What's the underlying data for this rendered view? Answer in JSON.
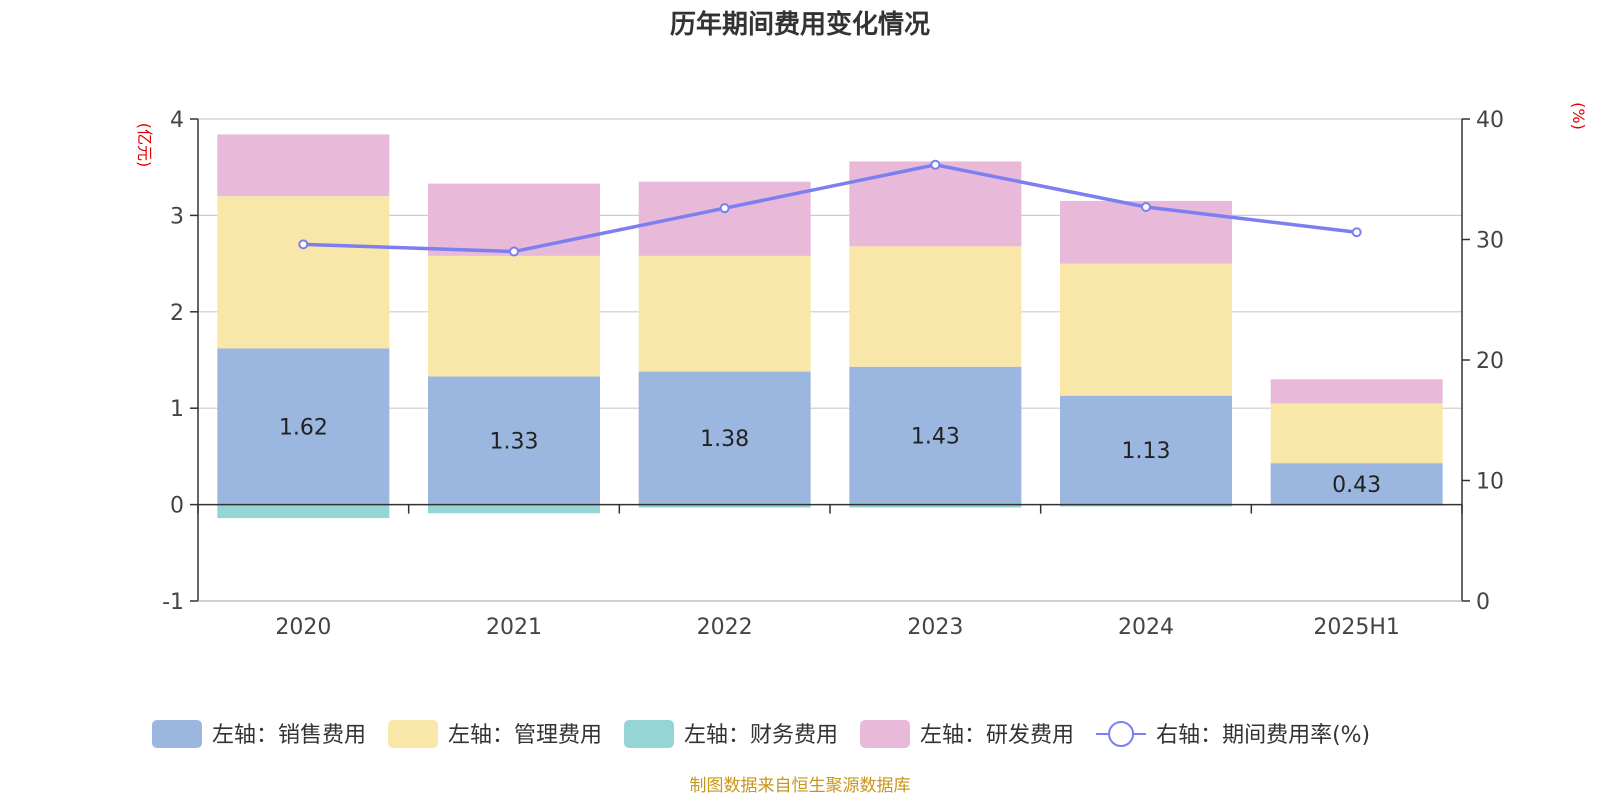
{
  "chart_data": {
    "type": "bar",
    "title": "历年期间费用变化情况",
    "categories": [
      "2020",
      "2021",
      "2022",
      "2023",
      "2024",
      "2025H1"
    ],
    "left_axis": {
      "unit": "(亿元)",
      "ylim": [
        -1,
        4
      ],
      "ticks": [
        -1,
        0,
        1,
        2,
        3,
        4
      ]
    },
    "right_axis": {
      "unit": "(%)",
      "ylim": [
        0,
        40
      ],
      "ticks": [
        0,
        10,
        20,
        30,
        40
      ]
    },
    "grid": true,
    "legend_position": "bottom",
    "series": [
      {
        "name": "左轴：销售费用",
        "type": "bar",
        "stack": "total",
        "color": "#9bb7e0",
        "values": [
          1.62,
          1.33,
          1.38,
          1.43,
          1.13,
          0.43
        ],
        "show_labels": true
      },
      {
        "name": "左轴：管理费用",
        "type": "bar",
        "stack": "total",
        "color": "#f8e7a8",
        "values": [
          1.58,
          1.25,
          1.2,
          1.25,
          1.37,
          0.62
        ]
      },
      {
        "name": "左轴：财务费用",
        "type": "bar",
        "stack": "total",
        "color": "#96d5d5",
        "values": [
          -0.14,
          -0.09,
          -0.03,
          -0.03,
          -0.02,
          -0.01
        ]
      },
      {
        "name": "左轴：研发费用",
        "type": "bar",
        "stack": "total",
        "color": "#e8b9d9",
        "values": [
          0.64,
          0.75,
          0.77,
          0.88,
          0.65,
          0.25
        ]
      },
      {
        "name": "右轴：期间费用率(%)",
        "type": "line",
        "axis": "right",
        "color": "#7b7fef",
        "values": [
          29.6,
          29.0,
          32.6,
          36.2,
          32.7,
          30.6
        ]
      }
    ]
  },
  "source_note": "制图数据来自恒生聚源数据库"
}
